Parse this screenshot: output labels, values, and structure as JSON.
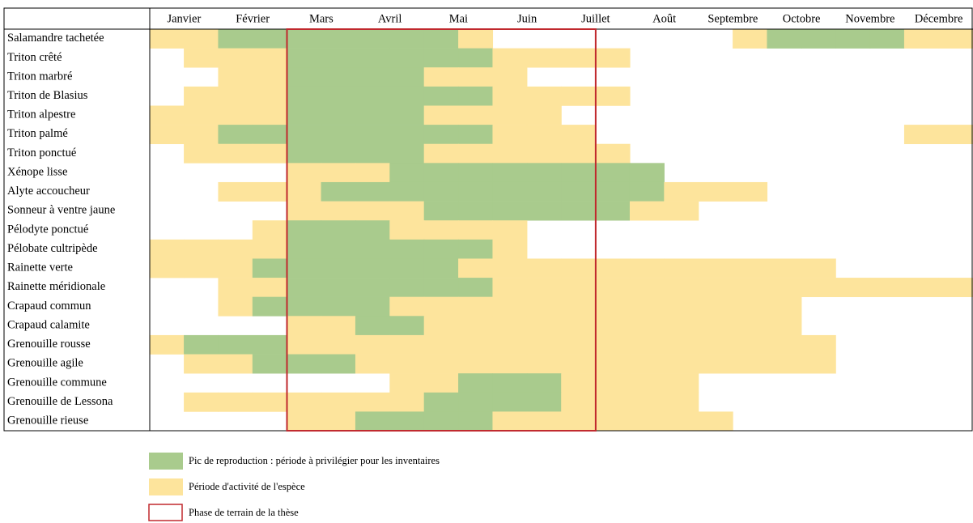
{
  "months": [
    "Janvier",
    "Février",
    "Mars",
    "Avril",
    "Mai",
    "Juin",
    "Juillet",
    "Août",
    "Septembre",
    "Octobre",
    "Novembre",
    "Décembre"
  ],
  "state_colors": [
    null,
    "#fde49c",
    "#a9cb8d"
  ],
  "field_phase_color": "#c0282d",
  "field_phase_cells": [
    4,
    12
  ],
  "species": [
    {
      "name": "Salamandre tachetée",
      "cells": [
        1,
        1,
        2,
        2,
        2,
        2,
        2,
        2,
        2,
        1,
        0,
        0,
        0,
        0,
        0,
        0,
        0,
        1,
        2,
        2,
        2,
        2,
        1,
        1
      ]
    },
    {
      "name": "Triton crêté",
      "cells": [
        0,
        1,
        1,
        1,
        2,
        2,
        2,
        2,
        2,
        2,
        1,
        1,
        1,
        1,
        0,
        0,
        0,
        0,
        0,
        0,
        0,
        0,
        0,
        0
      ]
    },
    {
      "name": "Triton marbré",
      "cells": [
        0,
        0,
        1,
        1,
        2,
        2,
        2,
        2,
        1,
        1,
        1,
        0,
        0,
        0,
        0,
        0,
        0,
        0,
        0,
        0,
        0,
        0,
        0,
        0
      ]
    },
    {
      "name": "Triton de Blasius",
      "cells": [
        0,
        1,
        1,
        1,
        2,
        2,
        2,
        2,
        2,
        2,
        1,
        1,
        1,
        1,
        0,
        0,
        0,
        0,
        0,
        0,
        0,
        0,
        0,
        0
      ]
    },
    {
      "name": "Triton alpestre",
      "cells": [
        1,
        1,
        1,
        1,
        2,
        2,
        2,
        2,
        1,
        1,
        1,
        1,
        0,
        0,
        0,
        0,
        0,
        0,
        0,
        0,
        0,
        0,
        0,
        0
      ]
    },
    {
      "name": "Triton palmé",
      "cells": [
        1,
        1,
        2,
        2,
        2,
        2,
        2,
        2,
        2,
        2,
        1,
        1,
        1,
        0,
        0,
        0,
        0,
        0,
        0,
        0,
        0,
        0,
        1,
        1
      ]
    },
    {
      "name": "Triton ponctué",
      "cells": [
        0,
        1,
        1,
        1,
        2,
        2,
        2,
        2,
        1,
        1,
        1,
        1,
        1,
        1,
        0,
        0,
        0,
        0,
        0,
        0,
        0,
        0,
        0,
        0
      ]
    },
    {
      "name": "Xénope lisse",
      "cells": [
        0,
        0,
        0,
        0,
        1,
        1,
        1,
        2,
        2,
        2,
        2,
        2,
        2,
        2,
        2,
        0,
        0,
        0,
        0,
        0,
        0,
        0,
        0,
        0
      ]
    },
    {
      "name": "Alyte accoucheur",
      "cells": [
        0,
        0,
        1,
        1,
        1,
        2,
        2,
        2,
        2,
        2,
        2,
        2,
        2,
        2,
        2,
        1,
        1,
        1,
        0,
        0,
        0,
        0,
        0,
        0
      ]
    },
    {
      "name": "Sonneur à ventre jaune",
      "cells": [
        0,
        0,
        0,
        0,
        1,
        1,
        1,
        1,
        2,
        2,
        2,
        2,
        2,
        2,
        1,
        1,
        0,
        0,
        0,
        0,
        0,
        0,
        0,
        0
      ]
    },
    {
      "name": "Pélodyte ponctué",
      "cells": [
        0,
        0,
        0,
        1,
        2,
        2,
        2,
        1,
        1,
        1,
        1,
        0,
        0,
        0,
        0,
        0,
        0,
        0,
        0,
        0,
        0,
        0,
        0,
        0
      ]
    },
    {
      "name": "Pélobate cultripède",
      "cells": [
        1,
        1,
        1,
        1,
        2,
        2,
        2,
        2,
        2,
        2,
        1,
        0,
        0,
        0,
        0,
        0,
        0,
        0,
        0,
        0,
        0,
        0,
        0,
        0
      ]
    },
    {
      "name": "Rainette verte",
      "cells": [
        1,
        1,
        1,
        2,
        2,
        2,
        2,
        2,
        2,
        1,
        1,
        1,
        1,
        1,
        1,
        1,
        1,
        1,
        1,
        1,
        0,
        0,
        0,
        0
      ]
    },
    {
      "name": "Rainette méridionale",
      "cells": [
        0,
        0,
        1,
        1,
        2,
        2,
        2,
        2,
        2,
        2,
        1,
        1,
        1,
        1,
        1,
        1,
        1,
        1,
        1,
        1,
        1,
        1,
        1,
        1
      ]
    },
    {
      "name": "Crapaud commun",
      "cells": [
        0,
        0,
        1,
        2,
        2,
        2,
        2,
        1,
        1,
        1,
        1,
        1,
        1,
        1,
        1,
        1,
        1,
        1,
        1,
        0,
        0,
        0,
        0,
        0
      ]
    },
    {
      "name": "Crapaud calamite",
      "cells": [
        0,
        0,
        0,
        0,
        1,
        1,
        2,
        2,
        1,
        1,
        1,
        1,
        1,
        1,
        1,
        1,
        1,
        1,
        1,
        0,
        0,
        0,
        0,
        0
      ]
    },
    {
      "name": "Grenouille rousse",
      "cells": [
        1,
        2,
        2,
        2,
        1,
        1,
        1,
        1,
        1,
        1,
        1,
        1,
        1,
        1,
        1,
        1,
        1,
        1,
        1,
        1,
        0,
        0,
        0,
        0
      ]
    },
    {
      "name": "Grenouille agile",
      "cells": [
        0,
        1,
        1,
        2,
        2,
        2,
        1,
        1,
        1,
        1,
        1,
        1,
        1,
        1,
        1,
        1,
        1,
        1,
        1,
        1,
        0,
        0,
        0,
        0
      ]
    },
    {
      "name": "Grenouille commune",
      "cells": [
        0,
        0,
        0,
        0,
        0,
        0,
        0,
        1,
        1,
        2,
        2,
        2,
        1,
        1,
        1,
        1,
        0,
        0,
        0,
        0,
        0,
        0,
        0,
        0
      ]
    },
    {
      "name": "Grenouille de Lessona",
      "cells": [
        0,
        1,
        1,
        1,
        1,
        1,
        1,
        1,
        2,
        2,
        2,
        2,
        1,
        1,
        1,
        1,
        0,
        0,
        0,
        0,
        0,
        0,
        0,
        0
      ]
    },
    {
      "name": "Grenouille rieuse",
      "cells": [
        0,
        0,
        0,
        0,
        1,
        1,
        2,
        2,
        2,
        2,
        1,
        1,
        1,
        1,
        1,
        1,
        1,
        0,
        0,
        0,
        0,
        0,
        0,
        0
      ]
    }
  ],
  "legend": [
    {
      "label": "Pic de reproduction : période à privilégier pour les inventaires",
      "state": 2
    },
    {
      "label": "Période d'activité de l'espèce",
      "state": 1
    },
    {
      "label": "Phase de terrain de la thèse"
    }
  ]
}
